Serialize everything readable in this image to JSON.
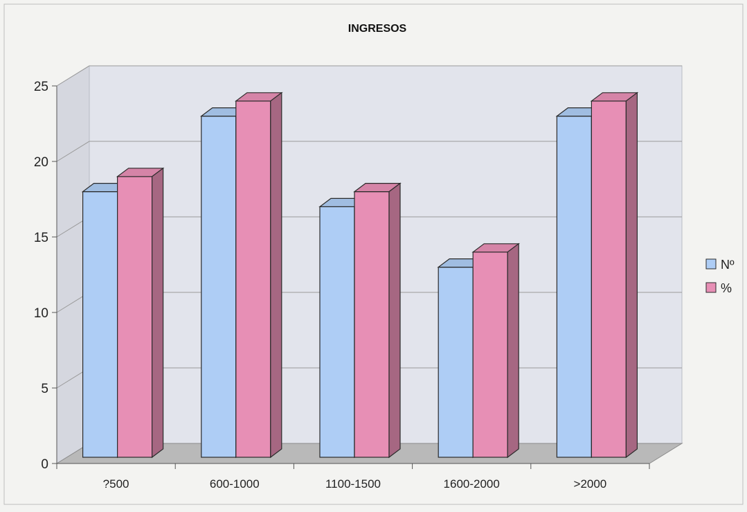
{
  "chart_data": {
    "type": "bar",
    "title": "INGRESOS",
    "xlabel": "",
    "ylabel": "",
    "categories": [
      "?500",
      "600-1000",
      "1100-1500",
      "1600-2000",
      ">2000"
    ],
    "series": [
      {
        "name": "Nº",
        "values": [
          18,
          23,
          17,
          13,
          23
        ],
        "color": "#aecdf5"
      },
      {
        "name": "%",
        "values": [
          19,
          24,
          18,
          14,
          24
        ],
        "color": "#e78fb5"
      }
    ],
    "ylim": [
      0,
      25
    ],
    "yticks": [
      0,
      5,
      10,
      15,
      20,
      25
    ],
    "grid": true,
    "three_d": true,
    "legend_position": "right",
    "colors": {
      "background": "#f3f3f1",
      "walls": "#e2e4ec",
      "floor": "#b9b9b9",
      "grid": "#9a9a9a",
      "outline": "#2a2a2a"
    }
  }
}
